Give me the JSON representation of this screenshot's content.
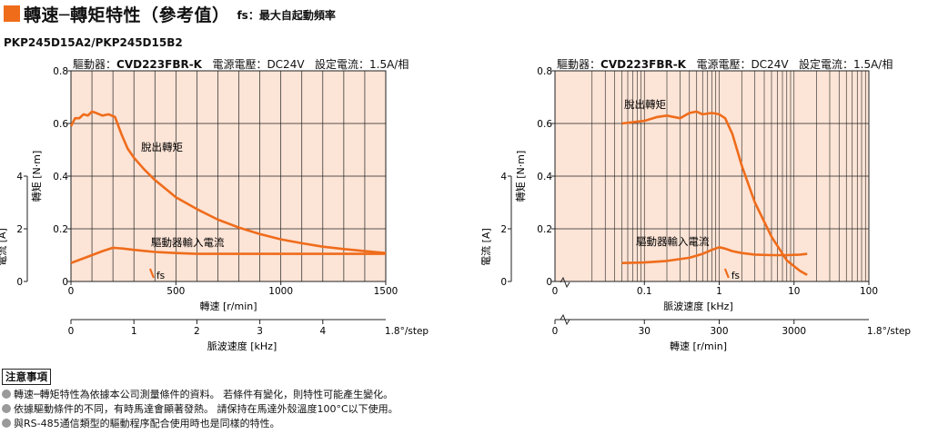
{
  "header": {
    "title": "轉速─轉矩特性（參考值）",
    "subtitle": "fs：最大自起動頻率",
    "model": "PKP245D15A2/PKP245D15B2"
  },
  "colors": {
    "accent": "#ef6c1b",
    "plot_bg": "#fce4d6",
    "curve": "#ef6c1b",
    "grid": "#222222"
  },
  "chart_data": [
    {
      "type": "line",
      "driver_text": {
        "driver_label": "驅動器：",
        "driver_model": "CVD223FBR-K",
        "voltage": "電源電壓：DC24V",
        "current": "設定電流：1.5A/相"
      },
      "xlabel": "轉速 [r/min]",
      "x_ticks": [
        "0",
        "500",
        "1000",
        "1500"
      ],
      "xlim": [
        0,
        1500
      ],
      "ylabel": "轉矩 [N·m]",
      "y_ticks": [
        "0",
        "0.2",
        "0.4",
        "0.6",
        "0.8"
      ],
      "ylim": [
        0,
        0.8
      ],
      "y2label": "電流 [A]",
      "y2_ticks": [
        "0",
        "2",
        "4"
      ],
      "y2lim": [
        0,
        8
      ],
      "x2label": "脈波速度 [kHz]",
      "x2_ticks": [
        "0",
        "1",
        "2",
        "3",
        "4"
      ],
      "x2_step": "1.8°/step",
      "series": [
        {
          "name": "脫出轉矩",
          "x": [
            0,
            20,
            40,
            60,
            80,
            100,
            120,
            150,
            180,
            210,
            240,
            270,
            300,
            350,
            400,
            500,
            600,
            700,
            800,
            900,
            1000,
            1100,
            1200,
            1300,
            1400,
            1500
          ],
          "y": [
            0.59,
            0.62,
            0.62,
            0.635,
            0.63,
            0.645,
            0.64,
            0.63,
            0.635,
            0.625,
            0.56,
            0.505,
            0.47,
            0.425,
            0.385,
            0.32,
            0.275,
            0.235,
            0.205,
            0.18,
            0.16,
            0.145,
            0.132,
            0.123,
            0.115,
            0.108
          ]
        },
        {
          "name": "驅動器輸入電流",
          "x": [
            0,
            50,
            100,
            150,
            200,
            250,
            300,
            400,
            500,
            600,
            800,
            1000,
            1200,
            1500
          ],
          "y": [
            0.7,
            0.85,
            1.0,
            1.15,
            1.28,
            1.25,
            1.2,
            1.12,
            1.08,
            1.05,
            1.05,
            1.05,
            1.05,
            1.05
          ]
        }
      ],
      "fs": {
        "label": "fs",
        "x": 390
      },
      "annotations": [
        "脫出轉矩",
        "驅動器輸入電流"
      ]
    },
    {
      "type": "line",
      "x_scale": "log",
      "driver_text": {
        "driver_label": "驅動器：",
        "driver_model": "CVD223FBR-K",
        "voltage": "電源電壓：DC24V",
        "current": "設定電流：1.5A/相"
      },
      "xlabel": "脈波速度 [kHz]",
      "x_ticks": [
        "0.1",
        "1",
        "10",
        "100"
      ],
      "x_origin_label": "0",
      "xlim": [
        0.01,
        100
      ],
      "ylabel": "轉矩 [N·m]",
      "y_ticks": [
        "0",
        "0.2",
        "0.4",
        "0.6",
        "0.8"
      ],
      "ylim": [
        0,
        0.8
      ],
      "y2label": "電流 [A]",
      "y2_ticks": [
        "0",
        "2",
        "4"
      ],
      "y2lim": [
        0,
        8
      ],
      "x2label": "轉速 [r/min]",
      "x2_ticks": [
        "0",
        "30",
        "300",
        "3000"
      ],
      "x2_step": "1.8°/step",
      "series": [
        {
          "name": "脫出轉矩",
          "x": [
            0.05,
            0.1,
            0.15,
            0.2,
            0.3,
            0.4,
            0.5,
            0.6,
            0.8,
            1.0,
            1.2,
            1.5,
            2,
            3,
            5,
            8,
            12,
            15
          ],
          "y": [
            0.6,
            0.61,
            0.625,
            0.63,
            0.62,
            0.64,
            0.645,
            0.635,
            0.64,
            0.635,
            0.62,
            0.56,
            0.44,
            0.3,
            0.17,
            0.08,
            0.04,
            0.025
          ]
        },
        {
          "name": "驅動器輸入電流",
          "x": [
            0.05,
            0.1,
            0.2,
            0.4,
            0.6,
            0.8,
            1.0,
            1.2,
            1.5,
            2,
            3,
            5,
            8,
            12,
            15
          ],
          "y": [
            0.7,
            0.72,
            0.78,
            0.9,
            1.05,
            1.2,
            1.3,
            1.25,
            1.15,
            1.08,
            1.02,
            1.0,
            1.0,
            1.02,
            1.05
          ]
        }
      ],
      "fs": {
        "label": "fs",
        "x": 1.3
      },
      "annotations": [
        "脫出轉矩",
        "驅動器輸入電流"
      ]
    }
  ],
  "notes": {
    "title": "注意事項",
    "items": [
      "轉速─轉矩特性為依據本公司測量條件的資料。 若條件有變化，則特性可能產生變化。",
      "依據驅動條件的不同，有時馬達會顯著發熱。 請保持在馬達外殼溫度100°C以下使用。",
      "與RS-485通信類型的驅動程序配合使用時也是同樣的特性。"
    ]
  }
}
